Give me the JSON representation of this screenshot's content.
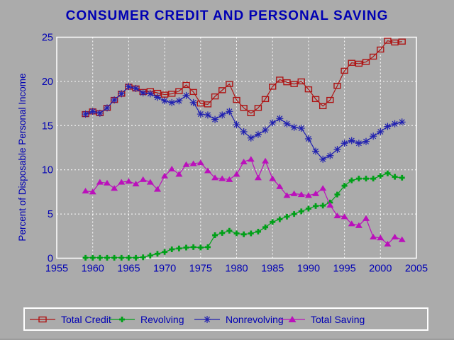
{
  "window": {
    "background": "#ABABAB",
    "frame_color": "#FFFFFF",
    "text_color": "#0000B4"
  },
  "chart_data": {
    "type": "line",
    "title": "CONSUMER CREDIT AND PERSONAL SAVING",
    "xlabel": "",
    "ylabel": "Percent of Disposable Personal Income",
    "xlim": [
      1955,
      2005
    ],
    "ylim": [
      0,
      25
    ],
    "x_ticks": [
      1955,
      1960,
      1965,
      1970,
      1975,
      1980,
      1985,
      1990,
      1995,
      2000,
      2005
    ],
    "y_ticks": [
      0,
      5,
      10,
      15,
      20,
      25
    ],
    "grid": {
      "style": "dashed",
      "color": "#FFFFFF",
      "x_lines": [
        1960,
        1965,
        1970,
        1975,
        1980,
        1985,
        1990,
        1995,
        2000
      ],
      "y_lines": [
        5,
        10,
        15,
        20
      ]
    },
    "legend_position": "bottom",
    "x": [
      1959,
      1960,
      1961,
      1962,
      1963,
      1964,
      1965,
      1966,
      1967,
      1968,
      1969,
      1970,
      1971,
      1972,
      1973,
      1974,
      1975,
      1976,
      1977,
      1978,
      1979,
      1980,
      1981,
      1982,
      1983,
      1984,
      1985,
      1986,
      1987,
      1988,
      1989,
      1990,
      1991,
      1992,
      1993,
      1994,
      1995,
      1996,
      1997,
      1998,
      1999,
      2000,
      2001,
      2002,
      2003
    ],
    "series": [
      {
        "name": "Total Credit",
        "color": "#AE1414",
        "marker": "square-open",
        "values": [
          16.3,
          16.6,
          16.4,
          17.0,
          17.9,
          18.6,
          19.4,
          19.2,
          18.8,
          18.9,
          18.7,
          18.5,
          18.6,
          18.9,
          19.6,
          18.8,
          17.5,
          17.4,
          18.3,
          19.0,
          19.7,
          17.9,
          17.0,
          16.4,
          17.0,
          18.0,
          19.4,
          20.2,
          19.9,
          19.7,
          20.0,
          19.1,
          18.0,
          17.2,
          17.9,
          19.5,
          21.2,
          22.1,
          22.0,
          22.2,
          22.8,
          23.6,
          24.6,
          24.4,
          24.5
        ]
      },
      {
        "name": "Revolving",
        "color": "#00A018",
        "marker": "plus",
        "values": [
          0.05,
          0.05,
          0.05,
          0.05,
          0.05,
          0.05,
          0.05,
          0.05,
          0.1,
          0.3,
          0.5,
          0.7,
          1.0,
          1.1,
          1.2,
          1.25,
          1.2,
          1.25,
          2.6,
          2.85,
          3.1,
          2.8,
          2.7,
          2.8,
          3.0,
          3.5,
          4.1,
          4.4,
          4.7,
          5.0,
          5.3,
          5.6,
          5.9,
          5.95,
          6.3,
          7.2,
          8.2,
          8.8,
          9.0,
          9.0,
          9.0,
          9.3,
          9.6,
          9.2,
          9.1
        ]
      },
      {
        "name": "Nonrevolving",
        "color": "#2020B0",
        "marker": "asterisk",
        "values": [
          16.3,
          16.6,
          16.4,
          17.0,
          17.9,
          18.6,
          19.4,
          19.2,
          18.7,
          18.6,
          18.2,
          17.8,
          17.6,
          17.8,
          18.4,
          17.6,
          16.3,
          16.2,
          15.7,
          16.2,
          16.6,
          15.1,
          14.3,
          13.6,
          14.0,
          14.5,
          15.3,
          15.8,
          15.2,
          14.8,
          14.7,
          13.5,
          12.1,
          11.2,
          11.6,
          12.3,
          13.0,
          13.3,
          13.0,
          13.2,
          13.8,
          14.3,
          14.9,
          15.2,
          15.4
        ]
      },
      {
        "name": "Total Saving",
        "color": "#BB10BB",
        "marker": "triangle-filled",
        "values": [
          7.6,
          7.5,
          8.6,
          8.5,
          7.9,
          8.6,
          8.7,
          8.4,
          8.9,
          8.6,
          7.8,
          9.3,
          10.1,
          9.5,
          10.6,
          10.7,
          10.8,
          9.9,
          9.1,
          9.0,
          8.9,
          9.5,
          10.9,
          11.2,
          9.1,
          11.0,
          9.0,
          8.1,
          7.1,
          7.3,
          7.2,
          7.1,
          7.3,
          7.9,
          6.0,
          4.8,
          4.7,
          3.9,
          3.7,
          4.5,
          2.4,
          2.3,
          1.6,
          2.4,
          2.1
        ]
      }
    ]
  },
  "legend": {
    "items": [
      {
        "label": "Total Credit"
      },
      {
        "label": "Revolving"
      },
      {
        "label": "Nonrevolving"
      },
      {
        "label": "Total Saving"
      }
    ]
  }
}
